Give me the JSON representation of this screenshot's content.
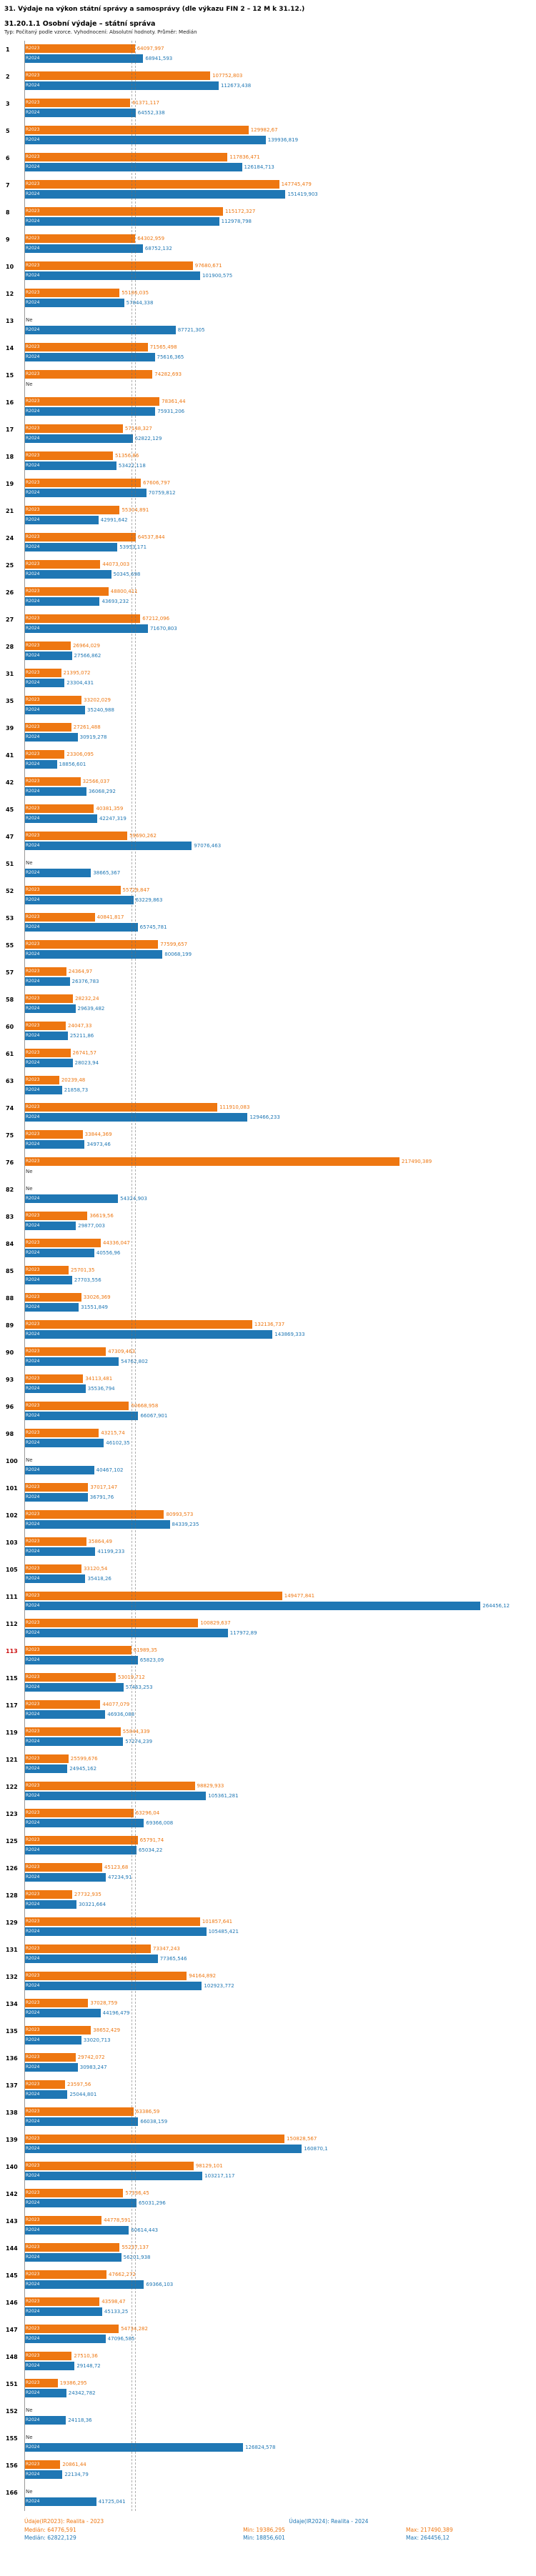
{
  "title": "31. Výdaje na výkon státní správy a samosprávy (dle výkazu FIN 2 – 12 M k 31.12.)",
  "subtitle": "31.20.1.1 Osobní výdaje – státní správa",
  "meta": "Typ: Počítaný podle vzorce. Vyhodnocení: Absolutní hodnoty. Průměr: Medián",
  "footer": {
    "legend_2023": "Údaje(IR2023): Realita - 2023",
    "legend_2024": "Údaje(IR2024): Realita - 2024",
    "stats_2023": {
      "median": "Medián: 64776,591",
      "min": "Min: 19386,295",
      "max": "Max: 217490,389"
    },
    "stats_2024": {
      "median": "Medián: 62822,129",
      "min": "Min: 18856,601",
      "max": "Max: 264456,12"
    }
  },
  "chart_data": {
    "type": "bar",
    "orientation": "horizontal",
    "title": "31.20.1.1 Osobní výdaje – státní správa",
    "xlabel": "",
    "ylabel": "",
    "xlim": [
      0,
      295000
    ],
    "grid": false,
    "missing": "Ne",
    "medians": {
      "R2023": 64776.591,
      "R2024": 62822.129
    },
    "highlighted_categories": [
      "113"
    ],
    "colors": {
      "R2023": "#ee7711",
      "R2024": "#1f77b4"
    },
    "categories": [
      "1",
      "2",
      "3",
      "5",
      "6",
      "7",
      "8",
      "9",
      "10",
      "12",
      "13",
      "14",
      "15",
      "16",
      "17",
      "18",
      "19",
      "21",
      "24",
      "25",
      "26",
      "27",
      "28",
      "31",
      "35",
      "39",
      "41",
      "42",
      "45",
      "47",
      "51",
      "52",
      "53",
      "55",
      "57",
      "58",
      "60",
      "61",
      "63",
      "74",
      "75",
      "76",
      "82",
      "83",
      "84",
      "85",
      "88",
      "89",
      "90",
      "93",
      "96",
      "98",
      "100",
      "101",
      "102",
      "103",
      "105",
      "111",
      "112",
      "113",
      "115",
      "117",
      "119",
      "121",
      "122",
      "123",
      "125",
      "126",
      "128",
      "129",
      "131",
      "132",
      "134",
      "135",
      "136",
      "137",
      "138",
      "139",
      "140",
      "142",
      "143",
      "144",
      "145",
      "146",
      "147",
      "148",
      "151",
      "152",
      "155",
      "156",
      "166"
    ],
    "series": [
      {
        "name": "R2023",
        "values": [
          "64097,997",
          "107752,803",
          "61371,117",
          "129982,67",
          "117836,471",
          "147745,479",
          "115172,327",
          "64302,959",
          "97680,671",
          "55186,035",
          "Ne",
          "71565,498",
          "74282,693",
          "78361,44",
          "57148,327",
          "51356,86",
          "67606,797",
          "55304,891",
          "64537,844",
          "44073,003",
          "48800,411",
          "67212,096",
          "26964,029",
          "21395,072",
          "33202,029",
          "27261,488",
          "23306,095",
          "32566,037",
          "40381,359",
          "59690,262",
          "Ne",
          "55729,847",
          "40841,817",
          "77599,657",
          "24364,97",
          "28232,24",
          "24047,33",
          "26741,57",
          "20239,48",
          "111910,083",
          "33844,369",
          "217490,389",
          "Ne",
          "36619,56",
          "44336,047",
          "25701,35",
          "33026,369",
          "132136,737",
          "47309,463",
          "34113,481",
          "60668,958",
          "43215,74",
          "Ne",
          "37017,147",
          "80993,573",
          "35864,49",
          "33120,54",
          "149477,841",
          "100829,637",
          "61989,35",
          "53019,712",
          "44077,079",
          "55844,339",
          "25599,676",
          "98829,933",
          "63296,04",
          "65791,74",
          "45123,68",
          "27732,935",
          "101857,641",
          "73347,243",
          "94164,892",
          "37028,759",
          "38652,429",
          "29742,072",
          "23597,56",
          "63386,59",
          "150828,567",
          "98129,101",
          "57336,45",
          "44778,591",
          "55237,137",
          "47662,272",
          "43598,47",
          "54734,282",
          "27510,36",
          "19386,295",
          "Ne",
          "Ne",
          "20861,44",
          "Ne"
        ]
      },
      {
        "name": "R2024",
        "values": [
          "68941,593",
          "112673,438",
          "64552,338",
          "139936,819",
          "126184,713",
          "151419,903",
          "112978,798",
          "68752,132",
          "101900,575",
          "57844,338",
          "87721,305",
          "75616,365",
          "Ne",
          "75931,206",
          "62822,129",
          "53422,118",
          "70759,812",
          "42991,642",
          "53953,171",
          "50345,698",
          "43693,232",
          "71670,803",
          "27566,862",
          "23304,431",
          "35240,988",
          "30919,278",
          "18856,601",
          "36068,292",
          "42247,319",
          "97076,463",
          "38665,367",
          "63229,863",
          "65745,781",
          "80068,199",
          "26376,783",
          "29639,482",
          "25211,86",
          "28023,94",
          "21858,73",
          "129466,233",
          "34973,46",
          "Ne",
          "54324,903",
          "29877,003",
          "40556,96",
          "27703,556",
          "31551,849",
          "143869,333",
          "54762,802",
          "35536,794",
          "66067,901",
          "46102,35",
          "40467,102",
          "36791,76",
          "84339,235",
          "41199,233",
          "35418,26",
          "264456,12",
          "117972,89",
          "65823,09",
          "57463,253",
          "46936,088",
          "57274,239",
          "24945,162",
          "105361,281",
          "69366,008",
          "65034,22",
          "47234,91",
          "30321,664",
          "105485,421",
          "77365,546",
          "102923,772",
          "44196,479",
          "33020,713",
          "30983,247",
          "25044,801",
          "66038,159",
          "160870,1",
          "103217,117",
          "65031,296",
          "60614,443",
          "56201,938",
          "69366,103",
          "45133,25",
          "47096,585",
          "29148,72",
          "24342,782",
          "24118,36",
          "126824,578",
          "22134,79",
          "41725,041"
        ]
      }
    ]
  }
}
